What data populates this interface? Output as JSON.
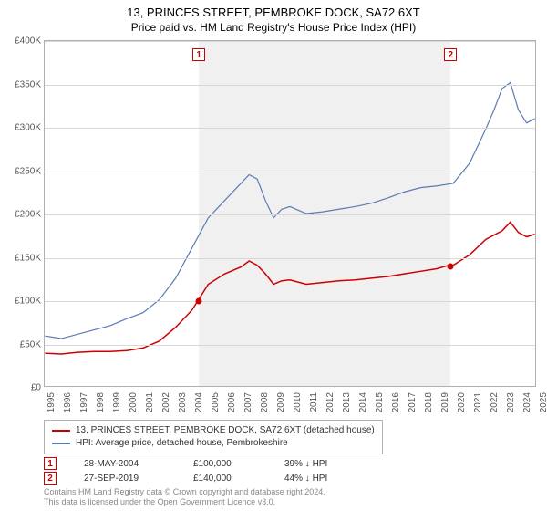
{
  "title_line1": "13, PRINCES STREET, PEMBROKE DOCK, SA72 6XT",
  "title_line2": "Price paid vs. HM Land Registry's House Price Index (HPI)",
  "chart": {
    "type": "line",
    "background_color": "#ffffff",
    "shaded_region_color": "#f0f0f0",
    "grid_color": "#d8d8d8",
    "border_color": "#b0b0b0",
    "y": {
      "min": 0,
      "max": 400000,
      "tick_step": 50000,
      "ticks": [
        "£0",
        "£50K",
        "£100K",
        "£150K",
        "£200K",
        "£250K",
        "£300K",
        "£350K",
        "£400K"
      ],
      "label_fontsize": 10,
      "label_color": "#555555"
    },
    "x": {
      "min": 1995,
      "max": 2025,
      "ticks": [
        1995,
        1996,
        1997,
        1998,
        1999,
        2000,
        2001,
        2002,
        2003,
        2004,
        2005,
        2006,
        2007,
        2008,
        2009,
        2010,
        2011,
        2012,
        2013,
        2014,
        2015,
        2016,
        2017,
        2018,
        2019,
        2020,
        2021,
        2022,
        2023,
        2024,
        2025
      ],
      "label_fontsize": 10,
      "label_color": "#555555",
      "rotation": -90
    },
    "shaded_region": {
      "x_start": 2004.4,
      "x_end": 2019.74
    },
    "series": [
      {
        "name": "price_paid",
        "color": "#cc0000",
        "line_width": 1.5,
        "data": [
          [
            1995,
            38000
          ],
          [
            1996,
            37000
          ],
          [
            1997,
            39000
          ],
          [
            1998,
            40000
          ],
          [
            1999,
            40000
          ],
          [
            2000,
            41000
          ],
          [
            2001,
            44000
          ],
          [
            2002,
            52000
          ],
          [
            2003,
            68000
          ],
          [
            2004,
            88000
          ],
          [
            2004.4,
            100000
          ],
          [
            2005,
            118000
          ],
          [
            2006,
            130000
          ],
          [
            2007,
            138000
          ],
          [
            2007.5,
            145000
          ],
          [
            2008,
            140000
          ],
          [
            2008.5,
            130000
          ],
          [
            2009,
            118000
          ],
          [
            2009.5,
            122000
          ],
          [
            2010,
            123000
          ],
          [
            2011,
            118000
          ],
          [
            2012,
            120000
          ],
          [
            2013,
            122000
          ],
          [
            2014,
            123000
          ],
          [
            2015,
            125000
          ],
          [
            2016,
            127000
          ],
          [
            2017,
            130000
          ],
          [
            2018,
            133000
          ],
          [
            2019,
            136000
          ],
          [
            2019.74,
            140000
          ],
          [
            2020,
            140000
          ],
          [
            2021,
            152000
          ],
          [
            2022,
            170000
          ],
          [
            2023,
            180000
          ],
          [
            2023.5,
            190000
          ],
          [
            2024,
            178000
          ],
          [
            2024.5,
            173000
          ],
          [
            2025,
            176000
          ]
        ]
      },
      {
        "name": "hpi",
        "color": "#5b7bb4",
        "line_width": 1.2,
        "data": [
          [
            1995,
            58000
          ],
          [
            1996,
            55000
          ],
          [
            1997,
            60000
          ],
          [
            1998,
            65000
          ],
          [
            1999,
            70000
          ],
          [
            2000,
            78000
          ],
          [
            2001,
            85000
          ],
          [
            2002,
            100000
          ],
          [
            2003,
            125000
          ],
          [
            2004,
            160000
          ],
          [
            2005,
            195000
          ],
          [
            2006,
            215000
          ],
          [
            2007,
            235000
          ],
          [
            2007.5,
            245000
          ],
          [
            2008,
            240000
          ],
          [
            2008.5,
            215000
          ],
          [
            2009,
            195000
          ],
          [
            2009.5,
            205000
          ],
          [
            2010,
            208000
          ],
          [
            2011,
            200000
          ],
          [
            2012,
            202000
          ],
          [
            2013,
            205000
          ],
          [
            2014,
            208000
          ],
          [
            2015,
            212000
          ],
          [
            2016,
            218000
          ],
          [
            2017,
            225000
          ],
          [
            2018,
            230000
          ],
          [
            2019,
            232000
          ],
          [
            2020,
            235000
          ],
          [
            2021,
            258000
          ],
          [
            2022,
            298000
          ],
          [
            2022.5,
            320000
          ],
          [
            2023,
            345000
          ],
          [
            2023.5,
            352000
          ],
          [
            2024,
            320000
          ],
          [
            2024.5,
            305000
          ],
          [
            2025,
            310000
          ]
        ]
      }
    ],
    "markers": [
      {
        "label": "1",
        "x": 2004.4,
        "y": 100000
      },
      {
        "label": "2",
        "x": 2019.74,
        "y": 140000
      }
    ],
    "marker_box_color": "#cc0000",
    "dot_color": "#cc0000"
  },
  "legend": {
    "items": [
      {
        "color": "#cc0000",
        "text": "13, PRINCES STREET, PEMBROKE DOCK, SA72 6XT (detached house)"
      },
      {
        "color": "#5b7bb4",
        "text": "HPI: Average price, detached house, Pembrokeshire"
      }
    ],
    "fontsize": 10,
    "border_color": "#b0b0b0"
  },
  "transactions": [
    {
      "marker": "1",
      "date": "28-MAY-2004",
      "price": "£100,000",
      "pct": "39% ↓ HPI"
    },
    {
      "marker": "2",
      "date": "27-SEP-2019",
      "price": "£140,000",
      "pct": "44% ↓ HPI"
    }
  ],
  "footnote_line1": "Contains HM Land Registry data © Crown copyright and database right 2024.",
  "footnote_line2": "This data is licensed under the Open Government Licence v3.0."
}
